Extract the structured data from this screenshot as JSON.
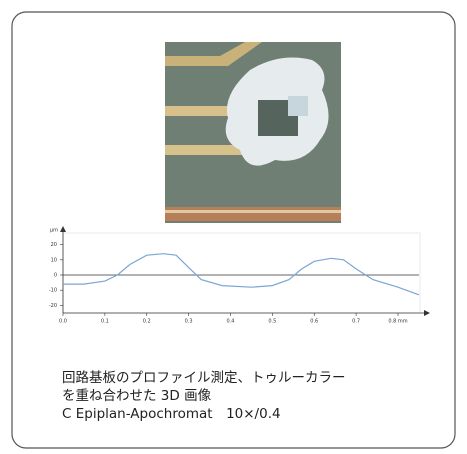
{
  "figure": {
    "caption": [
      "回路基板のプロファイル測定、トゥルーカラー",
      "を重ね合わせた 3D 画像",
      "C Epiplan-Apochromat　10×/0.4"
    ]
  },
  "chart_data": {
    "type": "line",
    "ylabel": "µm",
    "color": "#7aa6d6",
    "x": [
      0,
      0.05,
      0.1,
      0.13,
      0.16,
      0.2,
      0.24,
      0.27,
      0.3,
      0.33,
      0.38,
      0.45,
      0.5,
      0.54,
      0.57,
      0.6,
      0.64,
      0.67,
      0.7,
      0.74,
      0.8,
      0.85
    ],
    "values": [
      -6,
      -6,
      -4,
      0,
      7,
      13,
      14,
      13,
      5,
      -3,
      -7,
      -8,
      -7,
      -3,
      4,
      9,
      11,
      10,
      4,
      -3,
      -8,
      -13
    ],
    "xlim": [
      0,
      0.85
    ],
    "ylim": [
      -25,
      25
    ],
    "xticks": [
      {
        "value": 0,
        "label": "0.0"
      },
      0.1,
      0.2,
      0.3,
      0.4,
      0.5,
      0.6,
      0.7,
      {
        "value": 0.8,
        "label": "0.8 mm"
      }
    ],
    "yticks": [
      20,
      10,
      0,
      -10,
      -20
    ]
  }
}
